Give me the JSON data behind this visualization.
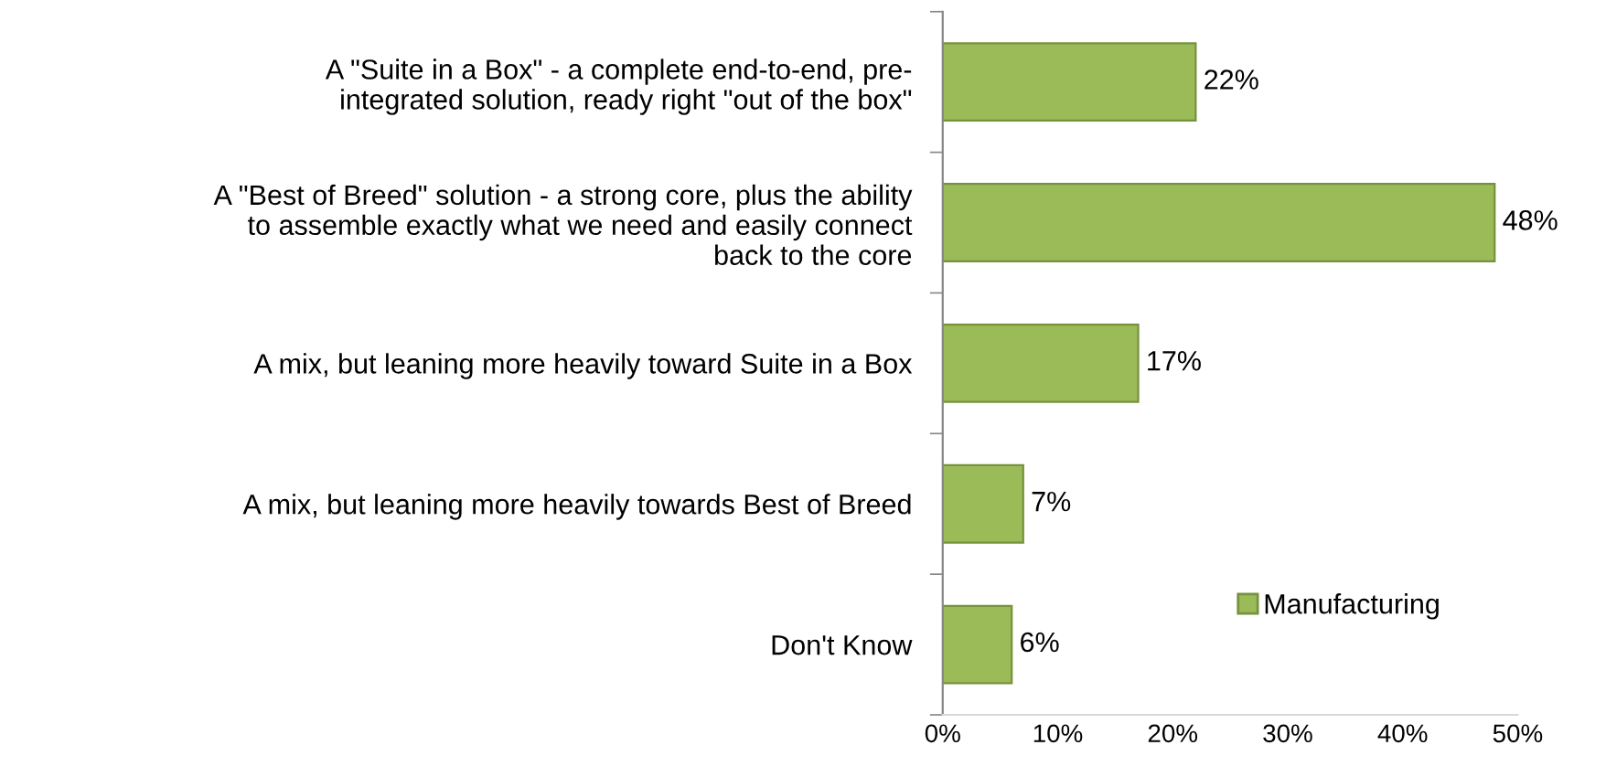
{
  "chart_data": {
    "type": "bar",
    "orientation": "horizontal",
    "categories": [
      "A \"Suite in a Box\" - a complete end-to-end, pre-\nintegrated solution, ready right \"out of the box\"",
      "A \"Best of Breed\" solution - a strong core, plus the ability\nto assemble exactly what we need and easily connect\nback to the core",
      "A mix, but leaning more heavily toward Suite in a Box",
      "A mix, but leaning more heavily towards Best of Breed",
      "Don't Know"
    ],
    "series": [
      {
        "name": "Manufacturing",
        "color": "#9bbb59",
        "values": [
          22,
          48,
          17,
          7,
          6
        ],
        "value_labels": [
          "22%",
          "48%",
          "17%",
          "7%",
          "6%"
        ]
      }
    ],
    "xlim": [
      0,
      50
    ],
    "xticks": [
      {
        "value": 0,
        "label": "0%"
      },
      {
        "value": 10,
        "label": "10%"
      },
      {
        "value": 20,
        "label": "20%"
      },
      {
        "value": 30,
        "label": "30%"
      },
      {
        "value": 40,
        "label": "40%"
      },
      {
        "value": 50,
        "label": "50%"
      }
    ],
    "legend": "bottom right",
    "grid": false
  }
}
